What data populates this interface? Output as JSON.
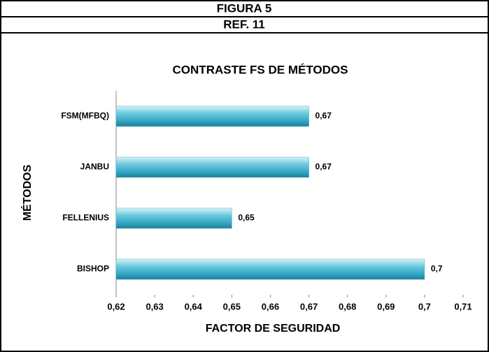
{
  "header": {
    "title": "FIGURA 5",
    "reference": "REF. 11"
  },
  "chart_data": {
    "type": "hbar",
    "title": "CONTRASTE FS  DE MÉTODOS",
    "x_label": "FACTOR DE SEGURIDAD",
    "y_label": "MÉTODOS",
    "categories": [
      "FSM(MFBQ)",
      "JANBU",
      "FELLENIUS",
      "BISHOP"
    ],
    "values": [
      0.67,
      0.67,
      0.65,
      0.7
    ],
    "value_labels": [
      "0,67",
      "0,67",
      "0,65",
      "0,7"
    ],
    "color": "#4bacc6",
    "xlim": [
      0.62,
      0.71
    ],
    "xticks": [
      {
        "value": 0.62,
        "label": "0,62"
      },
      {
        "value": 0.63,
        "label": "0,63"
      },
      {
        "value": 0.64,
        "label": "0,64"
      },
      {
        "value": 0.65,
        "label": "0,65"
      },
      {
        "value": 0.66,
        "label": "0,66"
      },
      {
        "value": 0.67,
        "label": "0,67"
      },
      {
        "value": 0.68,
        "label": "0,68"
      },
      {
        "value": 0.69,
        "label": "0,69"
      },
      {
        "value": 0.7,
        "label": "0,7"
      },
      {
        "value": 0.71,
        "label": "0,71"
      }
    ],
    "grid": false
  }
}
